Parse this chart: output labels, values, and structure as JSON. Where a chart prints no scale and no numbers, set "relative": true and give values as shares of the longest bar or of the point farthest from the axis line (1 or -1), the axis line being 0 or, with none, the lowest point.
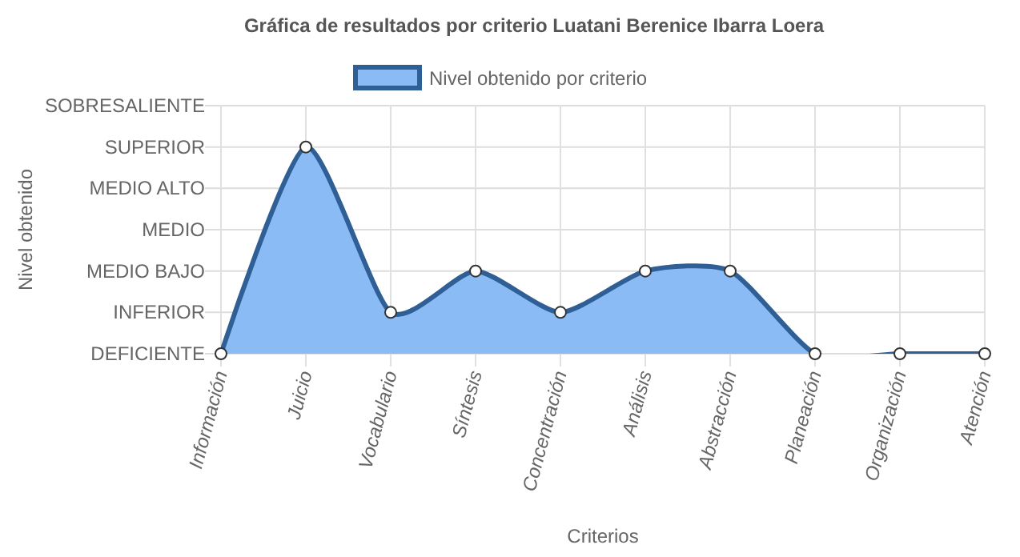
{
  "chart_data": {
    "type": "area",
    "title": "Gráfica de resultados por criterio Luatani Berenice Ibarra Loera",
    "xlabel": "Criterios",
    "annotations": [
      "Nivel obtenido"
    ],
    "categories": [
      "Información",
      "Juicio",
      "Vocabulario",
      "Síntesis",
      "Concentración",
      "Análisis",
      "Abstracción",
      "Planeación",
      "Organización",
      "Atención"
    ],
    "y_categories": [
      "SOBRESALIENTE",
      "SUPERIOR",
      "MEDIO ALTO",
      "MEDIO",
      "MEDIO BAJO",
      "INFERIOR",
      "DEFICIENTE"
    ],
    "relative": true,
    "series": [
      {
        "name": "Nivel obtenido por criterio",
        "color": "#2f5f95",
        "values": [
          0,
          1,
          0.2,
          0.4,
          0.2,
          0.4,
          0.4,
          0,
          0,
          0
        ]
      }
    ],
    "grid": true,
    "legend": "top",
    "marker": "circle",
    "line_style": "solid"
  }
}
